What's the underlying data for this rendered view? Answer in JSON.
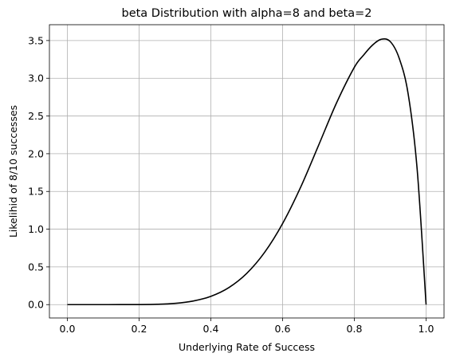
{
  "chart_data": {
    "type": "line",
    "title": "beta Distribution with alpha=8 and beta=2",
    "xlabel": "Underlying Rate of Success",
    "ylabel": "Likelihid of 8/10 successes",
    "xlim": [
      -0.05,
      1.05
    ],
    "ylim": [
      -0.177,
      3.71
    ],
    "grid": true,
    "x_ticks": [
      0.0,
      0.2,
      0.4,
      0.6,
      0.8,
      1.0
    ],
    "x_tick_labels": [
      "0.0",
      "0.2",
      "0.4",
      "0.6",
      "0.8",
      "1.0"
    ],
    "y_ticks": [
      0.0,
      0.5,
      1.0,
      1.5,
      2.0,
      2.5,
      3.0,
      3.5
    ],
    "y_tick_labels": [
      "0.0",
      "0.5",
      "1.0",
      "1.5",
      "2.0",
      "2.5",
      "3.0",
      "3.5"
    ],
    "series": [
      {
        "color": "#000000",
        "x": [
          0.0,
          0.05,
          0.1,
          0.15,
          0.2,
          0.25,
          0.3,
          0.35,
          0.4,
          0.45,
          0.5,
          0.55,
          0.6,
          0.65,
          0.7,
          0.75,
          0.8,
          0.825,
          0.85,
          0.875,
          0.9,
          0.925,
          0.95,
          0.975,
          1.0
        ],
        "y": [
          0.0,
          0.0,
          0.0,
          0.0001,
          0.0007,
          0.0044,
          0.0165,
          0.0469,
          0.1101,
          0.2255,
          0.4141,
          0.6937,
          1.0748,
          1.5533,
          2.1082,
          2.6697,
          3.1457,
          3.3028,
          3.4367,
          3.5171,
          3.4868,
          3.2657,
          2.793,
          1.7998,
          0.0
        ]
      }
    ]
  }
}
